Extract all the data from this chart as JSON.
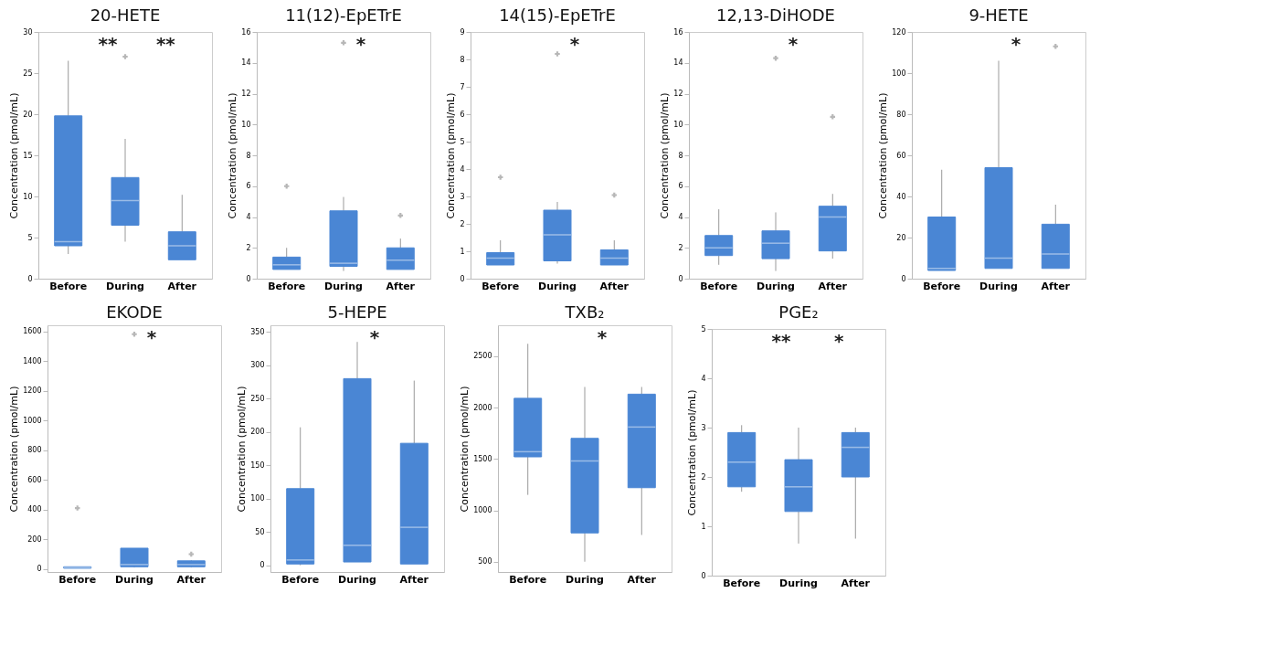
{
  "chart_data": [
    {
      "type": "box",
      "title": "20-HETE",
      "ylabel": "Concentration (pmol/mL)",
      "categories": [
        "Before",
        "During",
        "After"
      ],
      "color": "#4a86d4",
      "ylim": [
        0,
        30
      ],
      "yticks": [
        0,
        5,
        10,
        15,
        20,
        25,
        30
      ],
      "annotations": [
        "**",
        "**"
      ],
      "boxes": [
        {
          "low": 3,
          "q1": 4,
          "median": 4.5,
          "q3": 19.8,
          "high": 26.5
        },
        {
          "low": 4.5,
          "q1": 6.5,
          "median": 9.5,
          "q3": 12.3,
          "high": 17,
          "outliers": [
            27
          ]
        },
        {
          "low": 2.3,
          "q1": 2.3,
          "median": 4,
          "q3": 5.7,
          "high": 10.2
        }
      ]
    },
    {
      "type": "box",
      "title": "11(12)-EpETrE",
      "ylabel": "Concentration (pmol/mL)",
      "categories": [
        "Before",
        "During",
        "After"
      ],
      "color": "#4a86d4",
      "ylim": [
        0,
        16
      ],
      "yticks": [
        0,
        2,
        4,
        6,
        8,
        10,
        12,
        14,
        16
      ],
      "annotations": [
        "*"
      ],
      "boxes": [
        {
          "low": 0.6,
          "q1": 0.6,
          "median": 0.9,
          "q3": 1.4,
          "high": 2,
          "outliers": [
            6
          ]
        },
        {
          "low": 0.5,
          "q1": 0.8,
          "median": 1,
          "q3": 4.4,
          "high": 5.3,
          "outliers": [
            15.3
          ]
        },
        {
          "low": 0.6,
          "q1": 0.6,
          "median": 1.2,
          "q3": 2,
          "high": 2.6,
          "outliers": [
            4.1
          ]
        }
      ]
    },
    {
      "type": "box",
      "title": "14(15)-EpETrE",
      "ylabel": "Concentration (pmol/mL)",
      "categories": [
        "Before",
        "During",
        "After"
      ],
      "color": "#4a86d4",
      "ylim": [
        0,
        9
      ],
      "yticks": [
        0,
        1,
        2,
        3,
        4,
        5,
        6,
        7,
        8,
        9
      ],
      "annotations": [
        "*"
      ],
      "boxes": [
        {
          "low": 0.5,
          "q1": 0.5,
          "median": 0.75,
          "q3": 0.95,
          "high": 1.4,
          "outliers": [
            3.7
          ]
        },
        {
          "low": 0.55,
          "q1": 0.65,
          "median": 1.6,
          "q3": 2.5,
          "high": 2.8,
          "outliers": [
            8.2
          ]
        },
        {
          "low": 0.5,
          "q1": 0.5,
          "median": 0.75,
          "q3": 1.05,
          "high": 1.4,
          "outliers": [
            3.05
          ]
        }
      ]
    },
    {
      "type": "box",
      "title": "12,13-DiHODE",
      "ylabel": "Concentration (pmol/mL)",
      "categories": [
        "Before",
        "During",
        "After"
      ],
      "color": "#4a86d4",
      "ylim": [
        0,
        16
      ],
      "yticks": [
        0,
        2,
        4,
        6,
        8,
        10,
        12,
        14,
        16
      ],
      "annotations": [
        "*"
      ],
      "boxes": [
        {
          "low": 0.9,
          "q1": 1.5,
          "median": 2,
          "q3": 2.8,
          "high": 4.5
        },
        {
          "low": 0.5,
          "q1": 1.3,
          "median": 2.3,
          "q3": 3.1,
          "high": 4.3,
          "outliers": [
            14.3
          ]
        },
        {
          "low": 1.3,
          "q1": 1.8,
          "median": 4,
          "q3": 4.7,
          "high": 5.5,
          "outliers": [
            10.5
          ]
        }
      ]
    },
    {
      "type": "box",
      "title": "9-HETE",
      "ylabel": "Concentration (pmol/mL)",
      "categories": [
        "Before",
        "During",
        "After"
      ],
      "color": "#4a86d4",
      "ylim": [
        0,
        120
      ],
      "yticks": [
        0,
        20,
        40,
        60,
        80,
        100,
        120
      ],
      "annotations": [
        "*"
      ],
      "boxes": [
        {
          "low": 4,
          "q1": 4,
          "median": 5,
          "q3": 30,
          "high": 53
        },
        {
          "low": 5,
          "q1": 5,
          "median": 10,
          "q3": 54,
          "high": 106
        },
        {
          "low": 5,
          "q1": 5,
          "median": 12,
          "q3": 26.5,
          "high": 36,
          "outliers": [
            113
          ]
        }
      ]
    },
    {
      "type": "box",
      "title": "EKODE",
      "ylabel": "Concentration (pmol/mL)",
      "categories": [
        "Before",
        "During",
        "After"
      ],
      "color": "#4a86d4",
      "ylim": [
        -20,
        1640
      ],
      "yticks": [
        0,
        200,
        400,
        600,
        800,
        1000,
        1200,
        1400,
        1600
      ],
      "annotations": [
        "*"
      ],
      "boxes": [
        {
          "low": 5,
          "q1": 5,
          "median": 10,
          "q3": 15,
          "high": 15,
          "outliers": [
            410
          ]
        },
        {
          "low": 10,
          "q1": 15,
          "median": 30,
          "q3": 140,
          "high": 140,
          "outliers": [
            1580
          ]
        },
        {
          "low": 10,
          "q1": 15,
          "median": 30,
          "q3": 55,
          "high": 60,
          "outliers": [
            100
          ]
        }
      ]
    },
    {
      "type": "box",
      "title": "5-HEPE",
      "ylabel": "Concentration (pmol/mL)",
      "categories": [
        "Before",
        "During",
        "After"
      ],
      "color": "#4a86d4",
      "ylim": [
        -10,
        360
      ],
      "yticks": [
        0,
        50,
        100,
        150,
        200,
        250,
        300,
        350
      ],
      "annotations": [
        "*"
      ],
      "boxes": [
        {
          "low": 0,
          "q1": 2,
          "median": 8,
          "q3": 115,
          "high": 207
        },
        {
          "low": 5,
          "q1": 5,
          "median": 30,
          "q3": 280,
          "high": 335
        },
        {
          "low": 2,
          "q1": 2,
          "median": 57,
          "q3": 183,
          "high": 277
        }
      ]
    },
    {
      "type": "box",
      "title": "TXB₂",
      "ylabel": "Concentration (pmol/mL)",
      "categories": [
        "Before",
        "During",
        "After"
      ],
      "color": "#4a86d4",
      "ylim": [
        400,
        2800
      ],
      "yticks": [
        500,
        1000,
        1500,
        2000,
        2500
      ],
      "annotations": [
        "*"
      ],
      "boxes": [
        {
          "low": 1150,
          "q1": 1520,
          "median": 1570,
          "q3": 2090,
          "high": 2620
        },
        {
          "low": 500,
          "q1": 780,
          "median": 1480,
          "q3": 1700,
          "high": 2200
        },
        {
          "low": 760,
          "q1": 1220,
          "median": 1810,
          "q3": 2130,
          "high": 2200
        }
      ]
    },
    {
      "type": "box",
      "title": "PGE₂",
      "ylabel": "Concentration (pmol/mL)",
      "categories": [
        "Before",
        "During",
        "After"
      ],
      "color": "#4a86d4",
      "ylim": [
        0,
        5
      ],
      "yticks": [
        0,
        1,
        2,
        3,
        4,
        5
      ],
      "annotations": [
        "**",
        "*"
      ],
      "boxes": [
        {
          "low": 1.7,
          "q1": 1.8,
          "median": 2.3,
          "q3": 2.9,
          "high": 3.05
        },
        {
          "low": 0.65,
          "q1": 1.3,
          "median": 1.8,
          "q3": 2.35,
          "high": 3.0
        },
        {
          "low": 0.75,
          "q1": 2.0,
          "median": 2.6,
          "q3": 2.9,
          "high": 3.0
        }
      ]
    }
  ]
}
